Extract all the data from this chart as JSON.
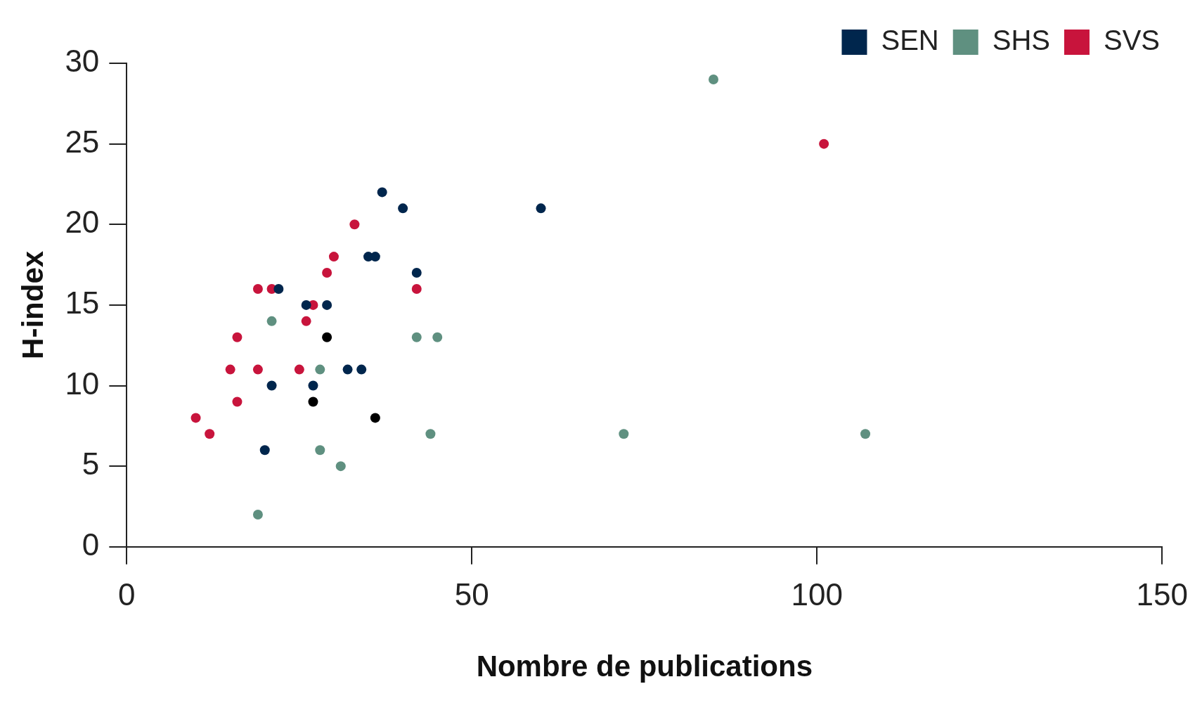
{
  "chart_data": {
    "type": "scatter",
    "xlabel": "Nombre de publications",
    "ylabel": "H-index",
    "xlim": [
      0,
      150
    ],
    "xticks": [
      0,
      50,
      100,
      150
    ],
    "ylim": [
      0,
      30
    ],
    "yticks": [
      0,
      5,
      10,
      15,
      20,
      25,
      30
    ],
    "grid": false,
    "legend": "top right",
    "marker": "circle",
    "series": [
      {
        "name": "SEN",
        "color": "#00264d",
        "x": [
          37,
          40,
          60,
          35,
          36,
          42,
          22,
          26,
          29,
          32,
          34,
          21,
          27,
          20
        ],
        "values": [
          22,
          21,
          21,
          18,
          18,
          17,
          16,
          15,
          15,
          11,
          11,
          10,
          10,
          6
        ]
      },
      {
        "name": "SHS",
        "color": "#5f9080",
        "x": [
          85,
          21,
          42,
          45,
          28,
          44,
          72,
          107,
          28,
          31,
          19
        ],
        "values": [
          29,
          14,
          13,
          13,
          11,
          7,
          7,
          7,
          6,
          5,
          2
        ]
      },
      {
        "name": "SVS",
        "color": "#c8143c",
        "x": [
          101,
          33,
          30,
          29,
          19,
          21,
          27,
          42,
          26,
          16,
          15,
          19,
          25,
          16,
          10,
          12
        ],
        "values": [
          25,
          20,
          18,
          17,
          16,
          16,
          15,
          16,
          14,
          13,
          11,
          11,
          11,
          9,
          8,
          7
        ]
      },
      {
        "color": "#000000",
        "x": [
          29,
          27,
          36
        ],
        "values": [
          13,
          9,
          8
        ]
      }
    ]
  }
}
